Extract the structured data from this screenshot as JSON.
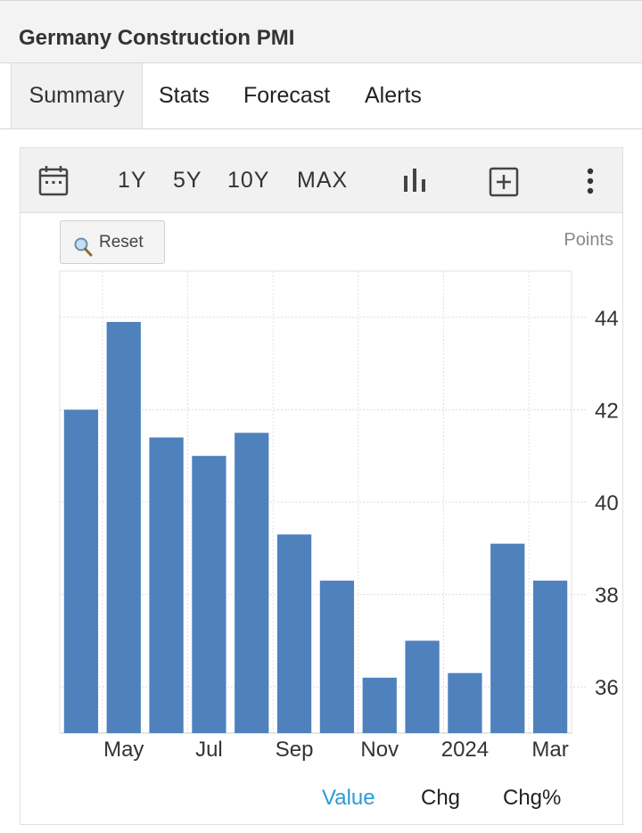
{
  "header": {
    "title": "Germany Construction PMI"
  },
  "tabs": [
    {
      "label": "Summary",
      "active": true
    },
    {
      "label": "Stats"
    },
    {
      "label": "Forecast"
    },
    {
      "label": "Alerts"
    }
  ],
  "toolbar": {
    "calendar_icon": "calendar-icon",
    "ranges": [
      "1Y",
      "5Y",
      "10Y",
      "MAX"
    ],
    "chart_type_icon": "bar-chart-icon",
    "compare_icon": "plus-box-icon",
    "more_icon": "more-vertical-icon"
  },
  "reset_label": "Reset",
  "units": "Points",
  "bottom_options": [
    {
      "label": "Value",
      "active": true
    },
    {
      "label": "Chg"
    },
    {
      "label": "Chg%"
    }
  ],
  "colors": {
    "bar": "#4f81bd",
    "accent": "#2a9ad6"
  },
  "chart_data": {
    "type": "bar",
    "x_tick_labels": [
      "May",
      "Jul",
      "Sep",
      "Nov",
      "2024",
      "Mar"
    ],
    "categories": [
      "Apr 2023",
      "May 2023",
      "Jun 2023",
      "Jul 2023",
      "Aug 2023",
      "Sep 2023",
      "Oct 2023",
      "Nov 2023",
      "Dec 2023",
      "Jan 2024",
      "Feb 2024",
      "Mar 2024"
    ],
    "values": [
      42.0,
      43.9,
      41.4,
      41.0,
      41.5,
      39.3,
      38.3,
      36.2,
      37.0,
      36.3,
      39.1,
      38.3
    ],
    "y_ticks": [
      36,
      38,
      40,
      42,
      44
    ],
    "ylim": [
      35,
      45
    ],
    "ylabel": "Points",
    "grid": true,
    "y_axis_side": "right"
  }
}
